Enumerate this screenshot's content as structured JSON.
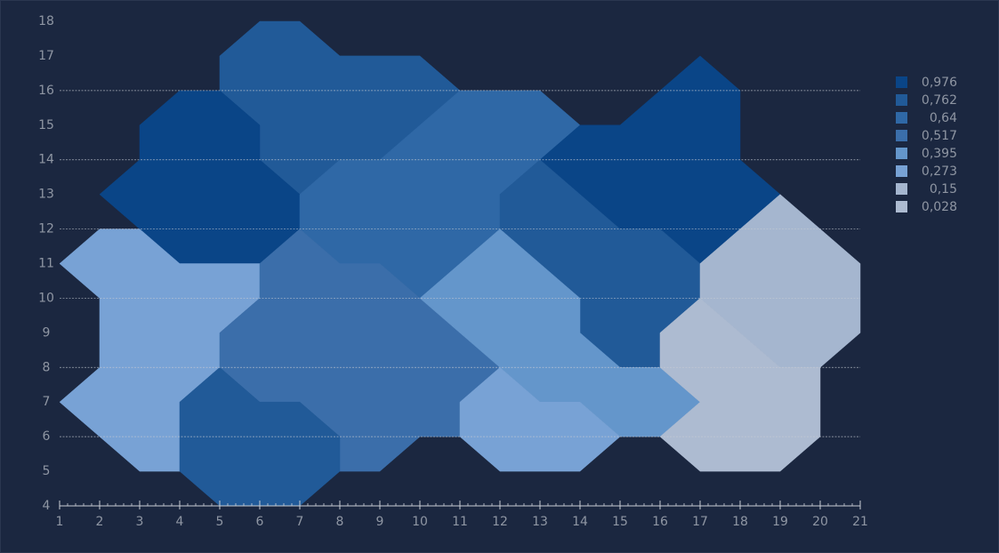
{
  "chart_data": {
    "type": "contour",
    "xlim": [
      1,
      21
    ],
    "ylim": [
      4,
      18
    ],
    "xticks": [
      1,
      2,
      3,
      4,
      5,
      6,
      7,
      8,
      9,
      10,
      11,
      12,
      13,
      14,
      15,
      16,
      17,
      18,
      19,
      20,
      21
    ],
    "yticks": [
      4,
      5,
      6,
      7,
      8,
      9,
      10,
      11,
      12,
      13,
      14,
      15,
      16,
      17,
      18
    ],
    "gridlines": [
      6,
      8,
      10,
      12,
      14,
      16
    ],
    "legend_position": "right",
    "levels": [
      {
        "value": 0.976,
        "label": "0,976",
        "color": "#0a4587"
      },
      {
        "value": 0.762,
        "label": "0,762",
        "color": "#215a98"
      },
      {
        "value": 0.64,
        "label": "0,64",
        "color": "#2f68a6"
      },
      {
        "value": 0.517,
        "label": "0,517",
        "color": "#3b6eaa"
      },
      {
        "value": 0.395,
        "label": "0,395",
        "color": "#6496cb"
      },
      {
        "value": 0.273,
        "label": "0,273",
        "color": "#78a2d5"
      },
      {
        "value": 0.15,
        "label": "0,15",
        "color": "#a5b6cf"
      },
      {
        "value": 0.028,
        "label": "0,028",
        "color": "#adbbd1"
      }
    ],
    "regions": [
      {
        "value": 0.762,
        "points": [
          [
            5,
            17
          ],
          [
            6,
            18
          ],
          [
            7,
            18
          ],
          [
            8,
            17
          ],
          [
            10,
            17
          ],
          [
            11,
            16
          ],
          [
            9,
            14
          ],
          [
            8,
            14
          ],
          [
            7,
            13
          ],
          [
            6,
            14
          ],
          [
            6,
            15
          ],
          [
            5,
            16
          ]
        ]
      },
      {
        "value": 0.976,
        "points": [
          [
            4,
            16
          ],
          [
            5,
            16
          ],
          [
            6,
            15
          ],
          [
            6,
            14
          ],
          [
            7,
            13
          ],
          [
            7,
            12
          ],
          [
            6,
            11
          ],
          [
            4,
            11
          ],
          [
            3,
            12
          ],
          [
            2,
            13
          ],
          [
            3,
            14
          ],
          [
            3,
            15
          ]
        ]
      },
      {
        "value": 0.64,
        "points": [
          [
            11,
            16
          ],
          [
            13,
            16
          ],
          [
            14,
            15
          ],
          [
            13,
            14
          ],
          [
            12,
            13
          ],
          [
            12,
            12
          ],
          [
            11,
            11
          ],
          [
            10,
            10
          ],
          [
            9,
            11
          ],
          [
            8,
            11
          ],
          [
            7,
            12
          ],
          [
            7,
            13
          ],
          [
            8,
            14
          ],
          [
            9,
            14
          ]
        ]
      },
      {
        "value": 0.976,
        "points": [
          [
            13,
            14
          ],
          [
            14,
            15
          ],
          [
            15,
            15
          ],
          [
            16,
            16
          ],
          [
            17,
            17
          ],
          [
            18,
            16
          ],
          [
            18,
            14
          ],
          [
            19,
            13
          ],
          [
            18,
            12
          ],
          [
            17,
            11
          ],
          [
            16,
            12
          ],
          [
            15,
            12
          ]
        ]
      },
      {
        "value": 0.762,
        "points": [
          [
            13,
            14
          ],
          [
            15,
            12
          ],
          [
            16,
            12
          ],
          [
            17,
            11
          ],
          [
            17,
            10
          ],
          [
            16,
            9
          ],
          [
            16,
            8
          ],
          [
            15,
            8
          ],
          [
            14,
            9
          ],
          [
            14,
            10
          ],
          [
            12,
            12
          ],
          [
            12,
            13
          ]
        ]
      },
      {
        "value": 0.273,
        "points": [
          [
            1,
            11
          ],
          [
            2,
            12
          ],
          [
            3,
            12
          ],
          [
            4,
            11
          ],
          [
            6,
            11
          ],
          [
            6,
            10
          ],
          [
            5,
            9
          ],
          [
            5,
            8
          ],
          [
            4,
            7
          ],
          [
            4,
            5
          ],
          [
            3,
            5
          ],
          [
            2,
            6
          ],
          [
            1,
            7
          ],
          [
            2,
            8
          ],
          [
            2,
            10
          ]
        ]
      },
      {
        "value": 0.517,
        "points": [
          [
            6,
            11
          ],
          [
            7,
            12
          ],
          [
            8,
            11
          ],
          [
            9,
            11
          ],
          [
            10,
            10
          ],
          [
            12,
            8
          ],
          [
            11,
            7
          ],
          [
            11,
            6
          ],
          [
            10,
            6
          ],
          [
            9,
            5
          ],
          [
            8,
            5
          ],
          [
            8,
            6
          ],
          [
            7,
            7
          ],
          [
            6,
            7
          ],
          [
            5,
            8
          ],
          [
            5,
            9
          ],
          [
            6,
            10
          ]
        ]
      },
      {
        "value": 0.762,
        "points": [
          [
            4,
            7
          ],
          [
            5,
            8
          ],
          [
            6,
            7
          ],
          [
            7,
            7
          ],
          [
            8,
            6
          ],
          [
            8,
            5
          ],
          [
            7,
            4
          ],
          [
            5,
            4
          ],
          [
            4,
            5
          ]
        ]
      },
      {
        "value": 0.395,
        "points": [
          [
            10,
            10
          ],
          [
            12,
            12
          ],
          [
            14,
            10
          ],
          [
            14,
            9
          ],
          [
            15,
            8
          ],
          [
            16,
            8
          ],
          [
            17,
            7
          ],
          [
            16,
            6
          ],
          [
            15,
            6
          ],
          [
            14,
            7
          ],
          [
            13,
            7
          ],
          [
            12,
            8
          ]
        ]
      },
      {
        "value": 0.273,
        "points": [
          [
            12,
            8
          ],
          [
            13,
            7
          ],
          [
            14,
            7
          ],
          [
            15,
            6
          ],
          [
            14,
            5
          ],
          [
            12,
            5
          ],
          [
            11,
            6
          ],
          [
            11,
            7
          ]
        ]
      },
      {
        "value": 0.15,
        "points": [
          [
            17,
            11
          ],
          [
            19,
            13
          ],
          [
            21,
            11
          ],
          [
            21,
            9
          ],
          [
            20,
            8
          ],
          [
            19,
            8
          ],
          [
            17,
            10
          ]
        ]
      },
      {
        "value": 0.028,
        "points": [
          [
            17,
            10
          ],
          [
            19,
            8
          ],
          [
            20,
            8
          ],
          [
            20,
            6
          ],
          [
            19,
            5
          ],
          [
            17,
            5
          ],
          [
            16,
            6
          ],
          [
            17,
            7
          ],
          [
            16,
            8
          ],
          [
            16,
            9
          ]
        ]
      }
    ]
  }
}
